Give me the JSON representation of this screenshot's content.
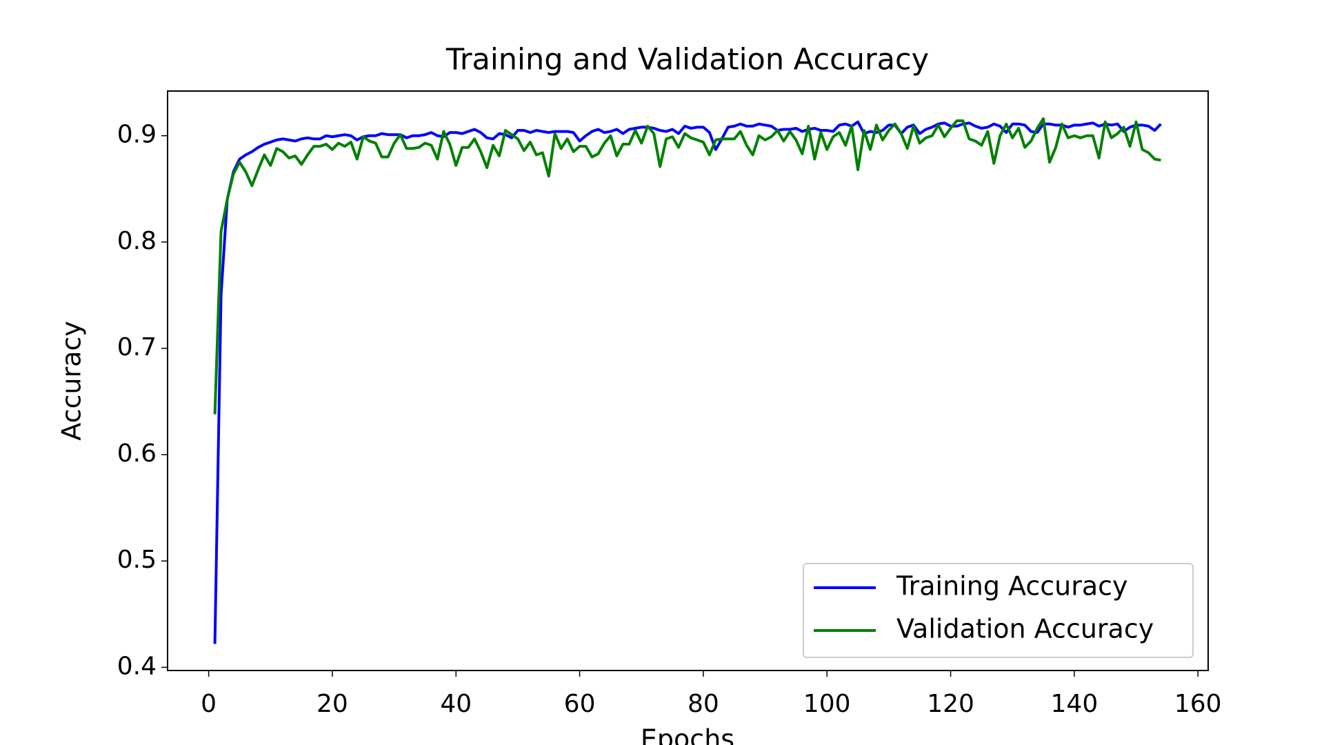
{
  "chart_data": {
    "type": "line",
    "title": "Training and Validation Accuracy",
    "x_label": "Epochs",
    "y_label": "Accuracy",
    "x": [
      1,
      2,
      3,
      4,
      5,
      6,
      7,
      8,
      9,
      10,
      11,
      12,
      13,
      14,
      15,
      16,
      17,
      18,
      19,
      20,
      21,
      22,
      23,
      24,
      25,
      26,
      27,
      28,
      29,
      30,
      31,
      32,
      33,
      34,
      35,
      36,
      37,
      38,
      39,
      40,
      41,
      42,
      43,
      44,
      45,
      46,
      47,
      48,
      49,
      50,
      51,
      52,
      53,
      54,
      55,
      56,
      57,
      58,
      59,
      60,
      61,
      62,
      63,
      64,
      65,
      66,
      67,
      68,
      69,
      70,
      71,
      72,
      73,
      74,
      75,
      76,
      77,
      78,
      79,
      80,
      81,
      82,
      83,
      84,
      85,
      86,
      87,
      88,
      89,
      90,
      91,
      92,
      93,
      94,
      95,
      96,
      97,
      98,
      99,
      100,
      101,
      102,
      103,
      104,
      105,
      106,
      107,
      108,
      109,
      110,
      111,
      112,
      113,
      114,
      115,
      116,
      117,
      118,
      119,
      120,
      121,
      122,
      123,
      124,
      125,
      126,
      127,
      128,
      129,
      130,
      131,
      132,
      133,
      134,
      135,
      136,
      137,
      138,
      139,
      140,
      141,
      142,
      143,
      144,
      145,
      146,
      147,
      148,
      149,
      150,
      151,
      152,
      153,
      154
    ],
    "series": [
      {
        "name": "Training Accuracy",
        "color": "#0000ff",
        "values": [
          0.422,
          0.75,
          0.84,
          0.866,
          0.878,
          0.882,
          0.885,
          0.889,
          0.892,
          0.894,
          0.896,
          0.897,
          0.896,
          0.895,
          0.897,
          0.898,
          0.897,
          0.897,
          0.9,
          0.899,
          0.9,
          0.901,
          0.9,
          0.896,
          0.899,
          0.9,
          0.9,
          0.902,
          0.901,
          0.901,
          0.901,
          0.898,
          0.9,
          0.9,
          0.901,
          0.903,
          0.9,
          0.899,
          0.903,
          0.903,
          0.902,
          0.904,
          0.906,
          0.903,
          0.898,
          0.897,
          0.902,
          0.901,
          0.898,
          0.905,
          0.905,
          0.903,
          0.905,
          0.904,
          0.903,
          0.904,
          0.904,
          0.904,
          0.903,
          0.895,
          0.9,
          0.904,
          0.906,
          0.903,
          0.904,
          0.906,
          0.902,
          0.906,
          0.907,
          0.908,
          0.908,
          0.907,
          0.905,
          0.904,
          0.906,
          0.902,
          0.909,
          0.907,
          0.908,
          0.908,
          0.903,
          0.887,
          0.897,
          0.908,
          0.909,
          0.911,
          0.909,
          0.909,
          0.911,
          0.91,
          0.909,
          0.905,
          0.906,
          0.906,
          0.907,
          0.904,
          0.906,
          0.907,
          0.905,
          0.905,
          0.904,
          0.91,
          0.911,
          0.909,
          0.913,
          0.902,
          0.904,
          0.903,
          0.905,
          0.91,
          0.91,
          0.902,
          0.908,
          0.91,
          0.902,
          0.906,
          0.908,
          0.911,
          0.912,
          0.909,
          0.909,
          0.911,
          0.912,
          0.909,
          0.907,
          0.908,
          0.911,
          0.909,
          0.903,
          0.911,
          0.911,
          0.91,
          0.904,
          0.903,
          0.911,
          0.911,
          0.91,
          0.91,
          0.908,
          0.91,
          0.91,
          0.911,
          0.912,
          0.909,
          0.911,
          0.91,
          0.911,
          0.904,
          0.908,
          0.91,
          0.91,
          0.909,
          0.905,
          0.911
        ]
      },
      {
        "name": "Validation Accuracy",
        "color": "#008000",
        "values": [
          0.638,
          0.81,
          0.84,
          0.864,
          0.875,
          0.866,
          0.853,
          0.868,
          0.882,
          0.872,
          0.888,
          0.885,
          0.879,
          0.881,
          0.873,
          0.882,
          0.89,
          0.89,
          0.892,
          0.887,
          0.893,
          0.89,
          0.894,
          0.878,
          0.899,
          0.895,
          0.893,
          0.88,
          0.88,
          0.893,
          0.901,
          0.888,
          0.888,
          0.889,
          0.893,
          0.891,
          0.878,
          0.904,
          0.892,
          0.872,
          0.889,
          0.889,
          0.897,
          0.885,
          0.87,
          0.891,
          0.881,
          0.905,
          0.901,
          0.897,
          0.886,
          0.894,
          0.882,
          0.884,
          0.862,
          0.902,
          0.888,
          0.897,
          0.885,
          0.89,
          0.89,
          0.88,
          0.883,
          0.893,
          0.9,
          0.881,
          0.892,
          0.892,
          0.905,
          0.893,
          0.909,
          0.902,
          0.871,
          0.897,
          0.899,
          0.889,
          0.902,
          0.898,
          0.896,
          0.894,
          0.882,
          0.896,
          0.897,
          0.897,
          0.897,
          0.904,
          0.891,
          0.882,
          0.9,
          0.896,
          0.899,
          0.905,
          0.895,
          0.904,
          0.896,
          0.883,
          0.909,
          0.878,
          0.903,
          0.887,
          0.899,
          0.903,
          0.891,
          0.909,
          0.868,
          0.905,
          0.887,
          0.91,
          0.896,
          0.905,
          0.911,
          0.902,
          0.888,
          0.909,
          0.893,
          0.898,
          0.9,
          0.91,
          0.899,
          0.907,
          0.914,
          0.914,
          0.897,
          0.895,
          0.891,
          0.904,
          0.874,
          0.9,
          0.911,
          0.898,
          0.907,
          0.889,
          0.895,
          0.907,
          0.916,
          0.875,
          0.889,
          0.911,
          0.898,
          0.9,
          0.898,
          0.9,
          0.9,
          0.879,
          0.913,
          0.898,
          0.902,
          0.908,
          0.89,
          0.913,
          0.887,
          0.884,
          0.878,
          0.877
        ]
      }
    ],
    "xlim": [
      -6.65,
      161.65
    ],
    "ylim": [
      0.397,
      0.942
    ],
    "xticks": [
      0,
      20,
      40,
      60,
      80,
      100,
      120,
      140,
      160
    ],
    "yticks": [
      0.4,
      0.5,
      0.6,
      0.7,
      0.8,
      0.9
    ],
    "legend": "lower right"
  }
}
